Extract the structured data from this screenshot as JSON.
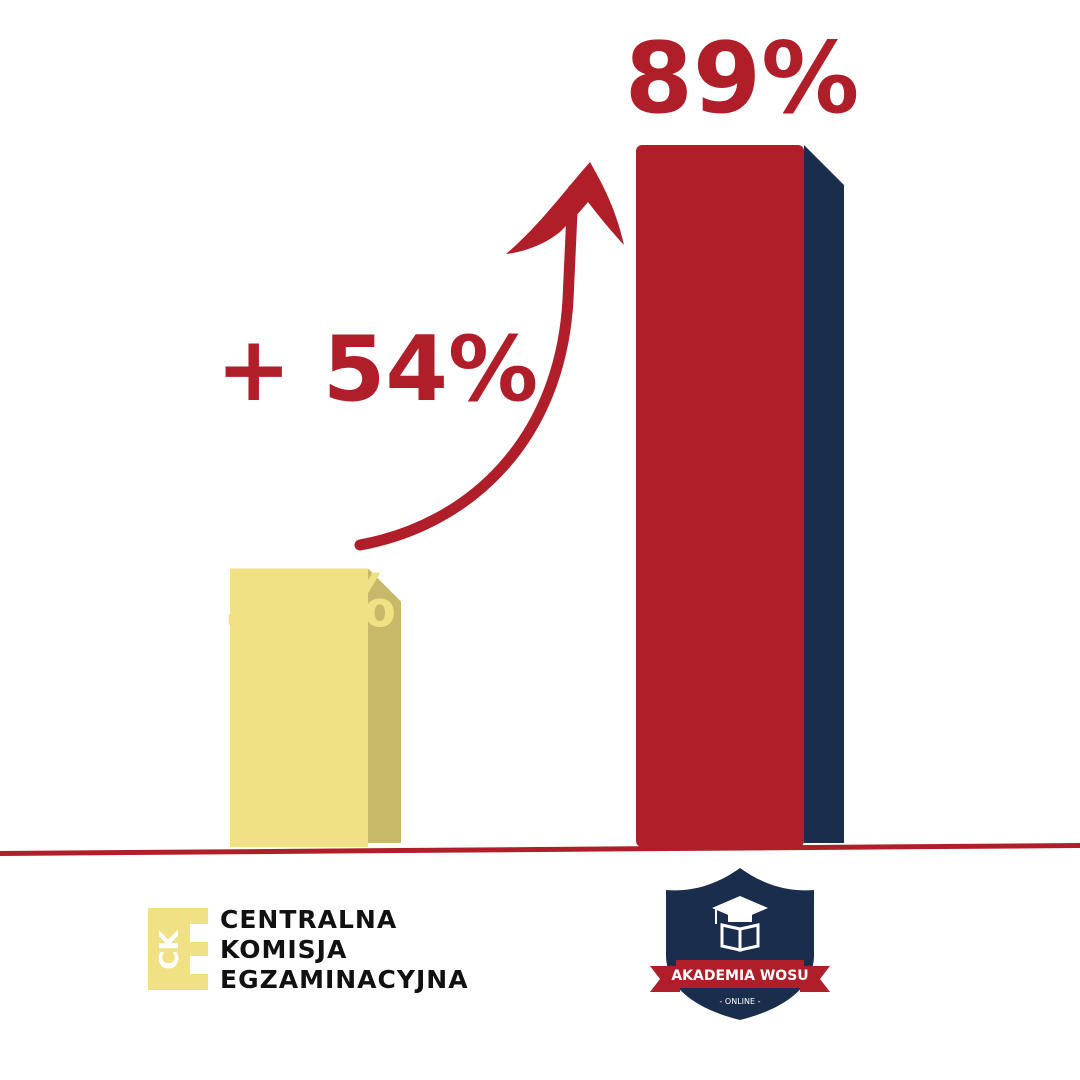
{
  "chart_data": {
    "type": "bar",
    "categories": [
      "Centralna Komisja Egzaminacyjna",
      "Akademia WOSu"
    ],
    "values": [
      35,
      89
    ],
    "value_labels": [
      "35%",
      "89%"
    ],
    "ylim": [
      0,
      100
    ],
    "annotation": "+ 54%",
    "title": "",
    "xlabel": "",
    "ylabel": "",
    "grid": false,
    "legend": "none"
  },
  "logos": {
    "cke": {
      "mark": "CK",
      "lines": [
        "CENTRALNA",
        "KOMISJA",
        "EGZAMINACYJNA"
      ]
    },
    "wosu": {
      "name": "AKADEMIA WOSU",
      "tagline": "- ONLINE -"
    }
  },
  "colors": {
    "bar_low": "#f0e185",
    "bar_low_side": "#c8b96a",
    "bar_high": "#b01f29",
    "bar_high_side": "#1b2d4d",
    "accent": "#b01f29",
    "value_low_text": "#f0e185",
    "baseline": "#b01f29"
  }
}
